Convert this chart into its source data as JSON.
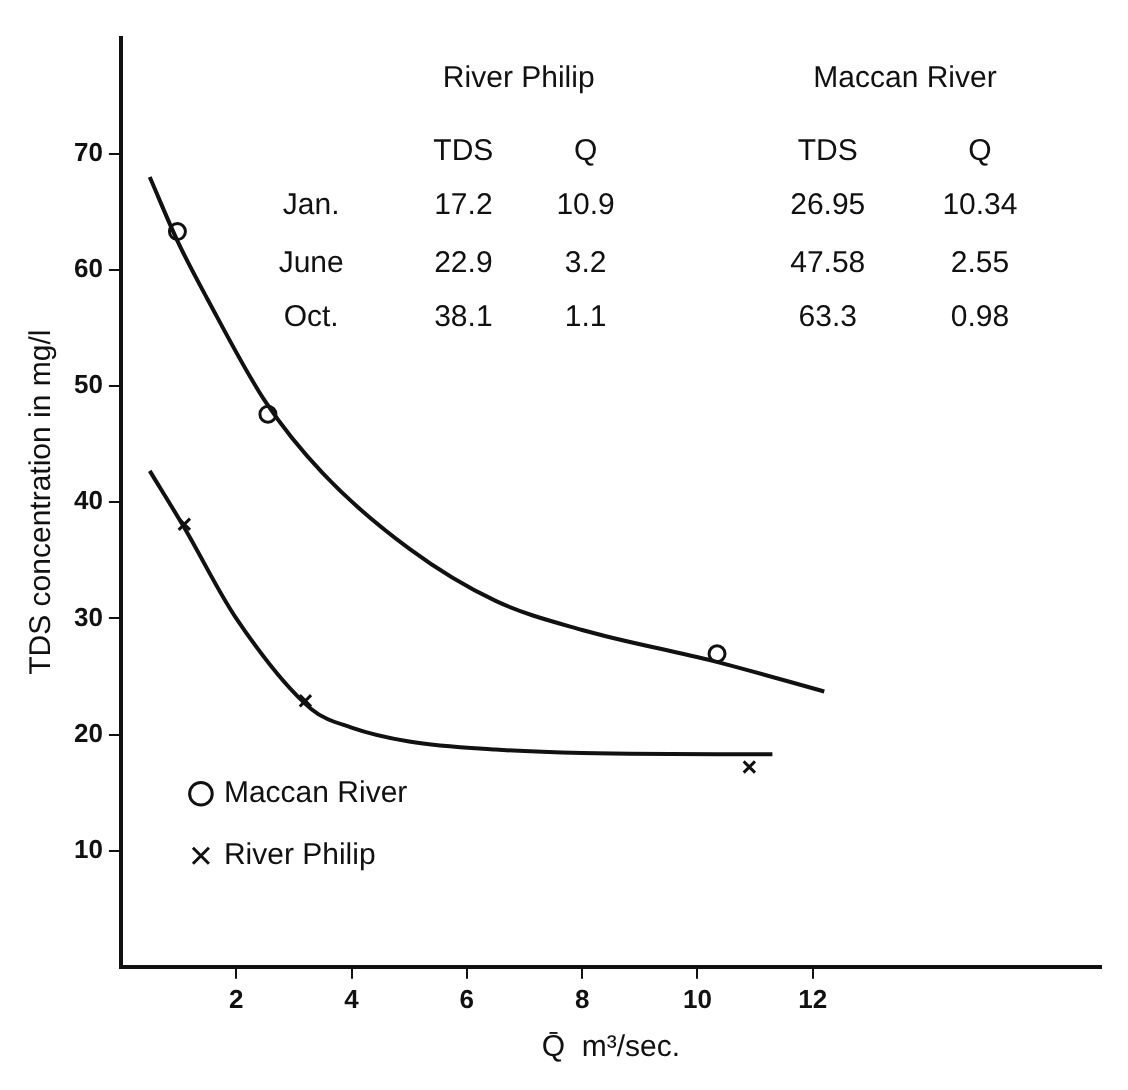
{
  "chart_data": {
    "type": "scatter",
    "xlabel": "Q̄  m³/sec.",
    "ylabel": "TDS concentration in mg/l",
    "xlim": [
      0,
      17
    ],
    "xticks": [
      2,
      4,
      6,
      8,
      10,
      12
    ],
    "ylim": [
      0,
      80
    ],
    "yticks": [
      10,
      20,
      30,
      40,
      50,
      60,
      70
    ],
    "grid": false,
    "legend": "bottom left",
    "series": [
      {
        "name": "Maccan River",
        "marker": "circle",
        "color": "#111111",
        "x": [
          10.34,
          2.55,
          0.98
        ],
        "values": [
          26.95,
          47.58,
          63.3
        ]
      },
      {
        "name": "River Philip",
        "marker": "cross",
        "color": "#111111",
        "x": [
          10.9,
          3.2,
          1.1
        ],
        "values": [
          17.2,
          22.9,
          38.1
        ]
      },
      {
        "type": "line",
        "marker": "none",
        "color": "#111111",
        "x": [
          0.5,
          0.98,
          1.5,
          2.5,
          3.5,
          5,
          6.5,
          8,
          10.3,
          12.2
        ],
        "values": [
          68,
          62.5,
          57.5,
          48.7,
          42.5,
          36,
          31.5,
          29,
          26.3,
          23.7
        ]
      },
      {
        "type": "line",
        "marker": "none",
        "color": "#111111",
        "x": [
          0.5,
          1.1,
          2,
          3.3,
          4,
          5,
          6.5,
          8,
          10.8,
          11.3
        ],
        "values": [
          42.7,
          37.8,
          30,
          22.2,
          20.6,
          19.4,
          18.7,
          18.4,
          18.3,
          18.3
        ]
      }
    ],
    "annotations": [
      "River Philip",
      "Maccan River",
      "TDS",
      "Q",
      "TDS",
      "Q",
      "Jan.",
      "17.2",
      "10.9",
      "26.95",
      "10.34",
      "June",
      "22.9",
      "3.2",
      "47.58",
      "2.55",
      "Oct.",
      "38.1",
      "1.1",
      "63.3",
      "0.98"
    ]
  }
}
